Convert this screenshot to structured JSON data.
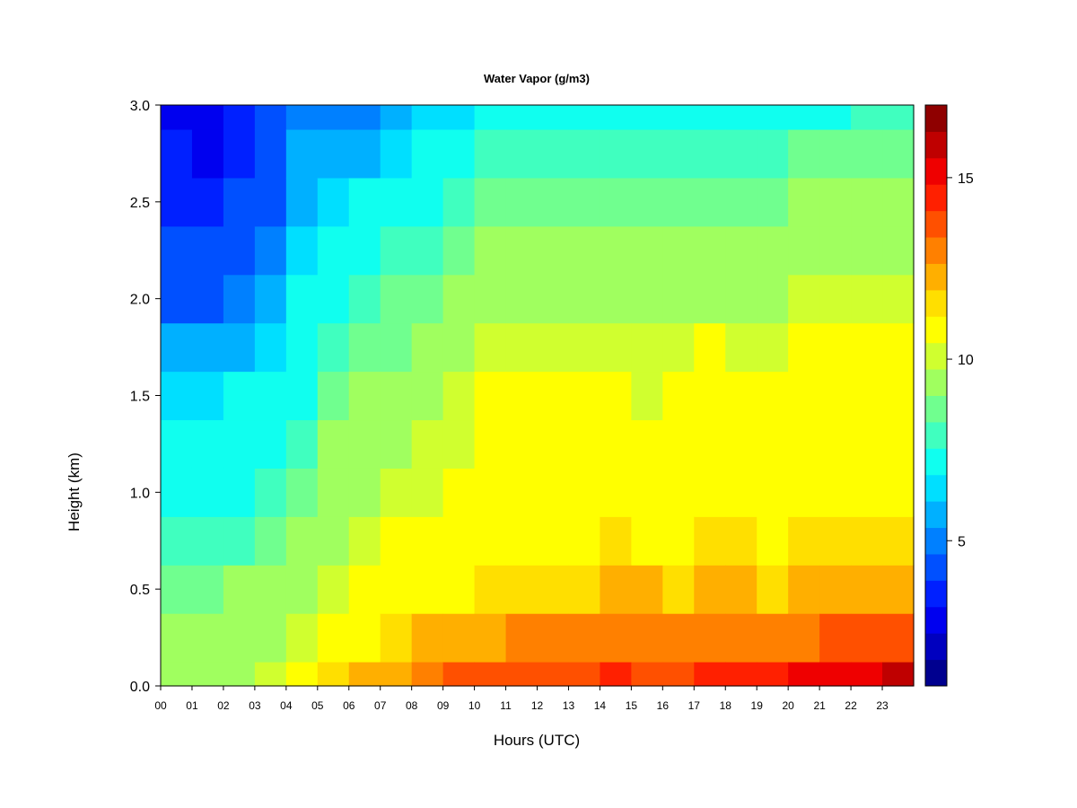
{
  "chart_data": {
    "type": "heatmap",
    "title": "Water Vapor (g/m3)",
    "xlabel": "Hours (UTC)",
    "ylabel": "Height (km)",
    "xlim": [
      0,
      24
    ],
    "ylim": [
      0.0,
      3.0
    ],
    "x_ticks": [
      "00",
      "01",
      "02",
      "03",
      "04",
      "05",
      "06",
      "07",
      "08",
      "09",
      "10",
      "11",
      "12",
      "13",
      "14",
      "15",
      "16",
      "17",
      "18",
      "19",
      "20",
      "21",
      "22",
      "23"
    ],
    "y_ticks": [
      "0.0",
      "0.5",
      "1.0",
      "1.5",
      "2.0",
      "2.5",
      "3.0"
    ],
    "colorbar": {
      "ticks": [
        "5",
        "10",
        "15"
      ],
      "tick_values": [
        5,
        10,
        15
      ],
      "range": [
        1,
        17
      ],
      "colors": [
        "#00008F",
        "#0000BF",
        "#0000EF",
        "#0020FF",
        "#0050FF",
        "#0080FF",
        "#00B0FF",
        "#00DFFF",
        "#10FFEF",
        "#40FFBF",
        "#70FF8F",
        "#A0FF5F",
        "#D0FF2F",
        "#FFFF00",
        "#FFDF00",
        "#FFAF00",
        "#FF8000",
        "#FF5000",
        "#FF2000",
        "#EF0000",
        "#BF0000",
        "#8F0000"
      ]
    },
    "series": [
      {
        "x": "00",
        "values": [
          9.0,
          9.5,
          8.5,
          8.0,
          7.5,
          7.0,
          6.5,
          5.5,
          4.5,
          4.0,
          3.5,
          3.5,
          3.0
        ]
      },
      {
        "x": "01",
        "values": [
          9.0,
          9.5,
          8.5,
          8.0,
          7.5,
          7.0,
          6.5,
          5.5,
          4.5,
          4.0,
          3.5,
          3.0,
          3.0
        ]
      },
      {
        "x": "02",
        "values": [
          9.5,
          9.5,
          9.0,
          8.0,
          7.5,
          7.0,
          7.0,
          6.0,
          5.0,
          4.5,
          4.0,
          3.5,
          3.5
        ]
      },
      {
        "x": "03",
        "values": [
          10.0,
          9.5,
          9.0,
          8.5,
          8.0,
          7.5,
          7.0,
          6.5,
          6.0,
          5.0,
          4.5,
          4.0,
          4.0
        ]
      },
      {
        "x": "04",
        "values": [
          10.5,
          10.0,
          9.5,
          9.0,
          8.5,
          8.0,
          7.5,
          7.0,
          7.0,
          6.5,
          6.0,
          5.5,
          5.0
        ]
      },
      {
        "x": "05",
        "values": [
          11.5,
          10.5,
          10.0,
          9.5,
          9.0,
          9.0,
          8.5,
          8.0,
          7.5,
          7.0,
          6.5,
          6.0,
          5.0
        ]
      },
      {
        "x": "06",
        "values": [
          12.0,
          11.0,
          10.5,
          10.0,
          9.5,
          9.5,
          9.0,
          8.5,
          8.0,
          7.5,
          7.0,
          6.0,
          5.0
        ]
      },
      {
        "x": "07",
        "values": [
          12.5,
          11.5,
          11.0,
          10.5,
          10.0,
          9.5,
          9.0,
          8.5,
          8.5,
          8.0,
          7.5,
          6.5,
          5.5
        ]
      },
      {
        "x": "08",
        "values": [
          13.0,
          12.0,
          11.0,
          10.5,
          10.0,
          10.0,
          9.5,
          9.0,
          8.5,
          8.0,
          7.5,
          7.0,
          6.5
        ]
      },
      {
        "x": "09",
        "values": [
          13.5,
          12.5,
          11.0,
          11.0,
          10.5,
          10.0,
          10.0,
          9.5,
          9.0,
          8.5,
          8.0,
          7.5,
          6.5
        ]
      },
      {
        "x": "10",
        "values": [
          14.0,
          12.5,
          11.5,
          11.0,
          11.0,
          10.5,
          10.5,
          10.0,
          9.5,
          9.0,
          8.5,
          8.0,
          7.0
        ]
      },
      {
        "x": "11",
        "values": [
          14.0,
          13.0,
          11.5,
          11.0,
          11.0,
          10.5,
          10.5,
          10.0,
          9.5,
          9.0,
          8.5,
          8.0,
          7.0
        ]
      },
      {
        "x": "12",
        "values": [
          14.0,
          13.0,
          11.5,
          11.0,
          10.5,
          10.5,
          10.5,
          10.0,
          9.5,
          9.0,
          8.5,
          8.0,
          7.0
        ]
      },
      {
        "x": "13",
        "values": [
          14.0,
          13.0,
          11.5,
          11.0,
          10.5,
          10.5,
          10.5,
          10.0,
          9.5,
          9.0,
          8.5,
          8.0,
          7.5
        ]
      },
      {
        "x": "14",
        "values": [
          14.5,
          13.0,
          12.0,
          11.5,
          11.0,
          10.5,
          10.5,
          10.0,
          9.5,
          9.0,
          8.5,
          8.0,
          7.5
        ]
      },
      {
        "x": "15",
        "values": [
          14.0,
          13.0,
          12.0,
          11.0,
          10.5,
          10.5,
          10.0,
          10.0,
          9.5,
          9.0,
          8.5,
          8.0,
          7.5
        ]
      },
      {
        "x": "16",
        "values": [
          14.0,
          13.0,
          11.5,
          11.0,
          11.0,
          10.5,
          10.5,
          10.0,
          9.5,
          9.0,
          8.5,
          8.0,
          7.5
        ]
      },
      {
        "x": "17",
        "values": [
          14.5,
          13.0,
          12.0,
          11.5,
          11.0,
          10.5,
          10.5,
          10.5,
          9.5,
          9.0,
          8.5,
          8.0,
          7.5
        ]
      },
      {
        "x": "18",
        "values": [
          14.5,
          13.0,
          12.0,
          11.5,
          11.0,
          10.5,
          10.5,
          10.0,
          9.5,
          9.0,
          8.5,
          8.0,
          7.5
        ]
      },
      {
        "x": "19",
        "values": [
          14.5,
          13.0,
          11.5,
          11.0,
          11.0,
          10.5,
          10.5,
          10.0,
          9.5,
          9.0,
          8.5,
          8.0,
          7.5
        ]
      },
      {
        "x": "20",
        "values": [
          15.0,
          13.0,
          12.0,
          11.5,
          11.0,
          11.0,
          10.5,
          10.5,
          10.0,
          9.5,
          9.0,
          8.5,
          7.5
        ]
      },
      {
        "x": "21",
        "values": [
          15.0,
          13.5,
          12.0,
          11.5,
          11.0,
          11.0,
          10.5,
          10.5,
          10.0,
          9.5,
          9.0,
          8.5,
          7.5
        ]
      },
      {
        "x": "22",
        "values": [
          15.5,
          13.5,
          12.0,
          11.5,
          11.0,
          11.0,
          10.5,
          10.5,
          10.0,
          9.5,
          9.0,
          8.5,
          8.0
        ]
      },
      {
        "x": "23",
        "values": [
          16.0,
          14.0,
          12.5,
          11.5,
          11.0,
          11.0,
          11.0,
          10.5,
          10.0,
          9.5,
          9.0,
          8.5,
          8.0
        ]
      }
    ],
    "height_levels": [
      0.0,
      0.25,
      0.5,
      0.75,
      1.0,
      1.25,
      1.5,
      1.75,
      2.0,
      2.25,
      2.5,
      2.75,
      3.0
    ]
  }
}
